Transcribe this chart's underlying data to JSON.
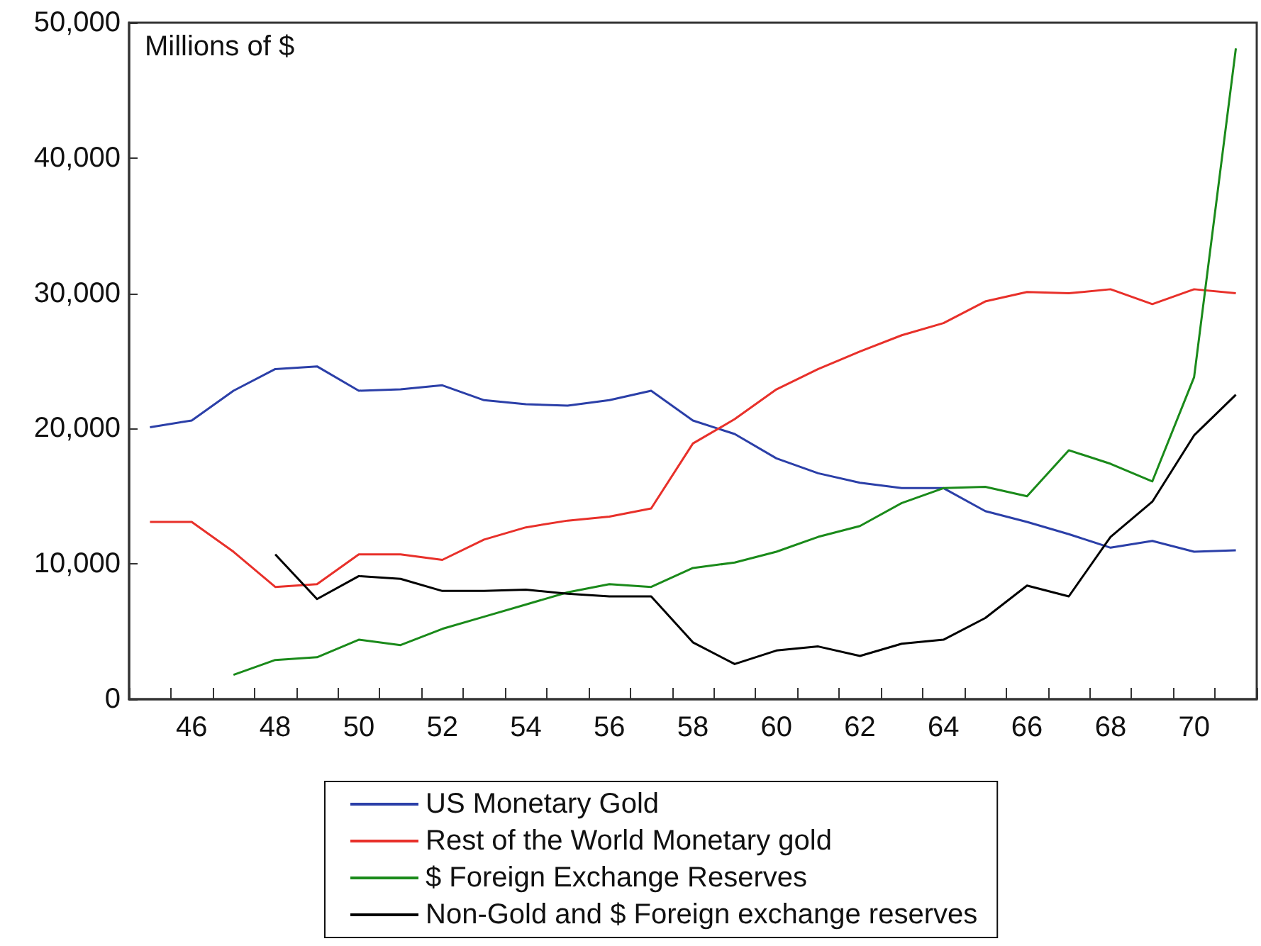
{
  "chart_data": {
    "type": "line",
    "ylabel": "Millions of $",
    "categories": [
      null,
      "46",
      null,
      "48",
      null,
      "50",
      null,
      "52",
      null,
      "54",
      null,
      "56",
      null,
      "58",
      null,
      "60",
      null,
      "62",
      null,
      "64",
      null,
      "66",
      null,
      "68",
      null,
      "70",
      null
    ],
    "ylim": [
      0,
      50000
    ],
    "yticks": [
      {
        "value": 0,
        "label": "0"
      },
      {
        "value": 10000,
        "label": "10,000"
      },
      {
        "value": 20000,
        "label": "20,000"
      },
      {
        "value": 30000,
        "label": "30,000"
      },
      {
        "value": 40000,
        "label": "40,000"
      },
      {
        "value": 50000,
        "label": "50,000"
      }
    ],
    "series": [
      {
        "name": "US Monetary Gold",
        "color": "#2b3fa8",
        "values": [
          20100,
          20600,
          22800,
          24400,
          24600,
          22800,
          22900,
          23200,
          22100,
          21800,
          21700,
          22100,
          22800,
          20600,
          19600,
          17800,
          16700,
          16000,
          15600,
          15600,
          13900,
          13100,
          12200,
          11200,
          11700,
          10900,
          11000
        ]
      },
      {
        "name": "Rest of the World Monetary gold",
        "color": "#e8302a",
        "values": [
          13100,
          13100,
          10900,
          8300,
          8500,
          10700,
          10700,
          10300,
          11800,
          12700,
          13200,
          13500,
          14100,
          18900,
          20700,
          22900,
          24400,
          25700,
          26900,
          27800,
          29400,
          30100,
          30000,
          30300,
          29200,
          30300,
          30000
        ]
      },
      {
        "name": "$ Foreign Exchange Reserves",
        "color": "#1a8a1a",
        "values": [
          null,
          null,
          1800,
          2900,
          3100,
          4400,
          4000,
          5200,
          6100,
          7000,
          7900,
          8500,
          8300,
          9700,
          10100,
          10900,
          12000,
          12800,
          14500,
          15600,
          15700,
          15000,
          18400,
          17400,
          16100,
          23800,
          48100
        ]
      },
      {
        "name": "Non-Gold and $ Foreign exchange reserves",
        "color": "#000000",
        "values": [
          null,
          null,
          null,
          10700,
          7400,
          9100,
          8900,
          8000,
          8000,
          8100,
          7800,
          7600,
          7600,
          4200,
          2600,
          3600,
          3900,
          3200,
          4100,
          4400,
          6000,
          8400,
          7600,
          12000,
          14600,
          19500,
          22500
        ]
      }
    ],
    "grid": false,
    "legend": "bottom",
    "marker": "none",
    "line_style": "solid"
  }
}
